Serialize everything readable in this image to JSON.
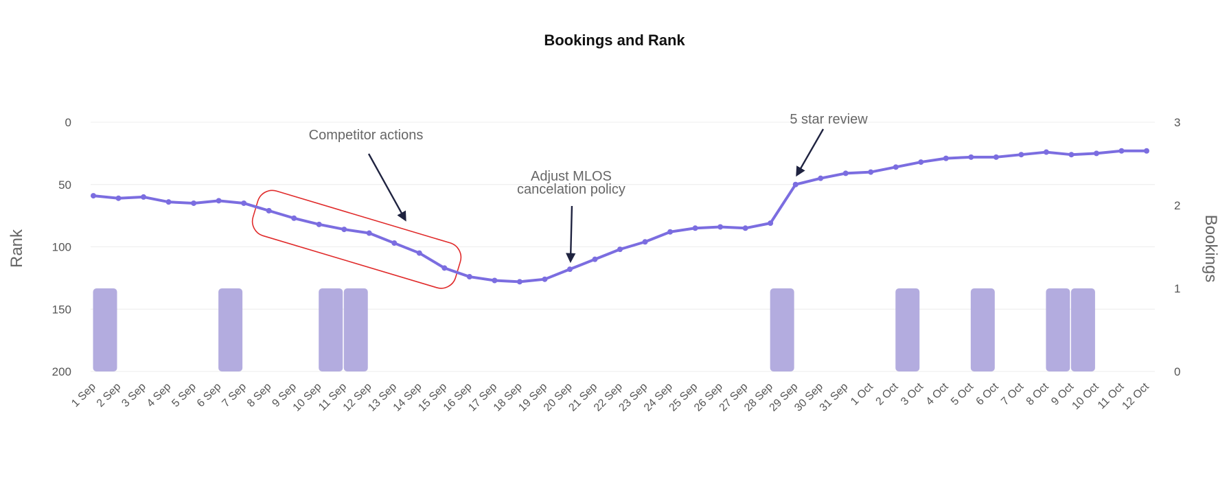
{
  "chart_data": {
    "type": "bar+line",
    "title": "Bookings and Rank",
    "categories": [
      "1 Sep",
      "2 Sep",
      "3 Sep",
      "4 Sep",
      "5 Sep",
      "6 Sep",
      "7 Sep",
      "8 Sep",
      "9 Sep",
      "10 Sep",
      "11 Sep",
      "12 Sep",
      "13 Sep",
      "14 Sep",
      "15 Sep",
      "16 Sep",
      "17 Sep",
      "18 Sep",
      "19 Sep",
      "20 Sep",
      "21 Sep",
      "22 Sep",
      "23 Sep",
      "24 Sep",
      "25 Sep",
      "26 Sep",
      "27 Sep",
      "28 Sep",
      "29 Sep",
      "30 Sep",
      "31 Sep",
      "1 Oct",
      "2 Oct",
      "3 Oct",
      "4 Oct",
      "5 Oct",
      "6 Oct",
      "7 Oct",
      "8 Oct",
      "9 Oct",
      "10 Oct",
      "11 Oct",
      "12 Oct"
    ],
    "left_axis": {
      "label": "Rank",
      "ticks": [
        "0",
        "50",
        "100",
        "150",
        "200"
      ],
      "range": [
        0,
        200
      ],
      "reversed": true
    },
    "right_axis": {
      "label": "Bookings",
      "ticks": [
        "0",
        "1",
        "2",
        "3"
      ],
      "range": [
        0,
        3
      ]
    },
    "series": [
      {
        "name": "Bookings",
        "kind": "bar",
        "axis": "right",
        "color": "#b3acdf",
        "values": [
          1,
          0,
          0,
          0,
          0,
          1,
          0,
          0,
          0,
          1,
          1,
          0,
          0,
          0,
          0,
          0,
          0,
          0,
          0,
          0,
          0,
          0,
          0,
          0,
          0,
          0,
          0,
          1,
          0,
          0,
          0,
          0,
          1,
          0,
          0,
          1,
          0,
          0,
          1,
          1,
          0,
          0,
          0
        ]
      },
      {
        "name": "Rank",
        "kind": "line",
        "axis": "left",
        "color": "#7b6de0",
        "values": [
          59,
          61,
          60,
          64,
          65,
          63,
          65,
          71,
          77,
          82,
          86,
          89,
          97,
          105,
          117,
          124,
          127,
          128,
          126,
          118,
          110,
          102,
          96,
          88,
          85,
          84,
          85,
          81,
          50,
          45,
          41,
          40,
          36,
          32,
          29,
          28,
          28,
          26,
          24,
          26,
          25,
          23,
          23
        ]
      }
    ],
    "grid": true,
    "legend": "none",
    "annotations": [
      {
        "text": "Competitor actions",
        "target_category": "13 Sep",
        "style": "highlight-box",
        "box_from": "8 Sep",
        "box_to": "15 Sep",
        "box_color": "#e02a2a"
      },
      {
        "text_lines": [
          "Adjust MLOS",
          "cancelation policy"
        ],
        "target_category": "20 Sep"
      },
      {
        "text": "5 star review",
        "target_category": "29 Sep"
      }
    ],
    "arrow_color": "#1f2340"
  }
}
